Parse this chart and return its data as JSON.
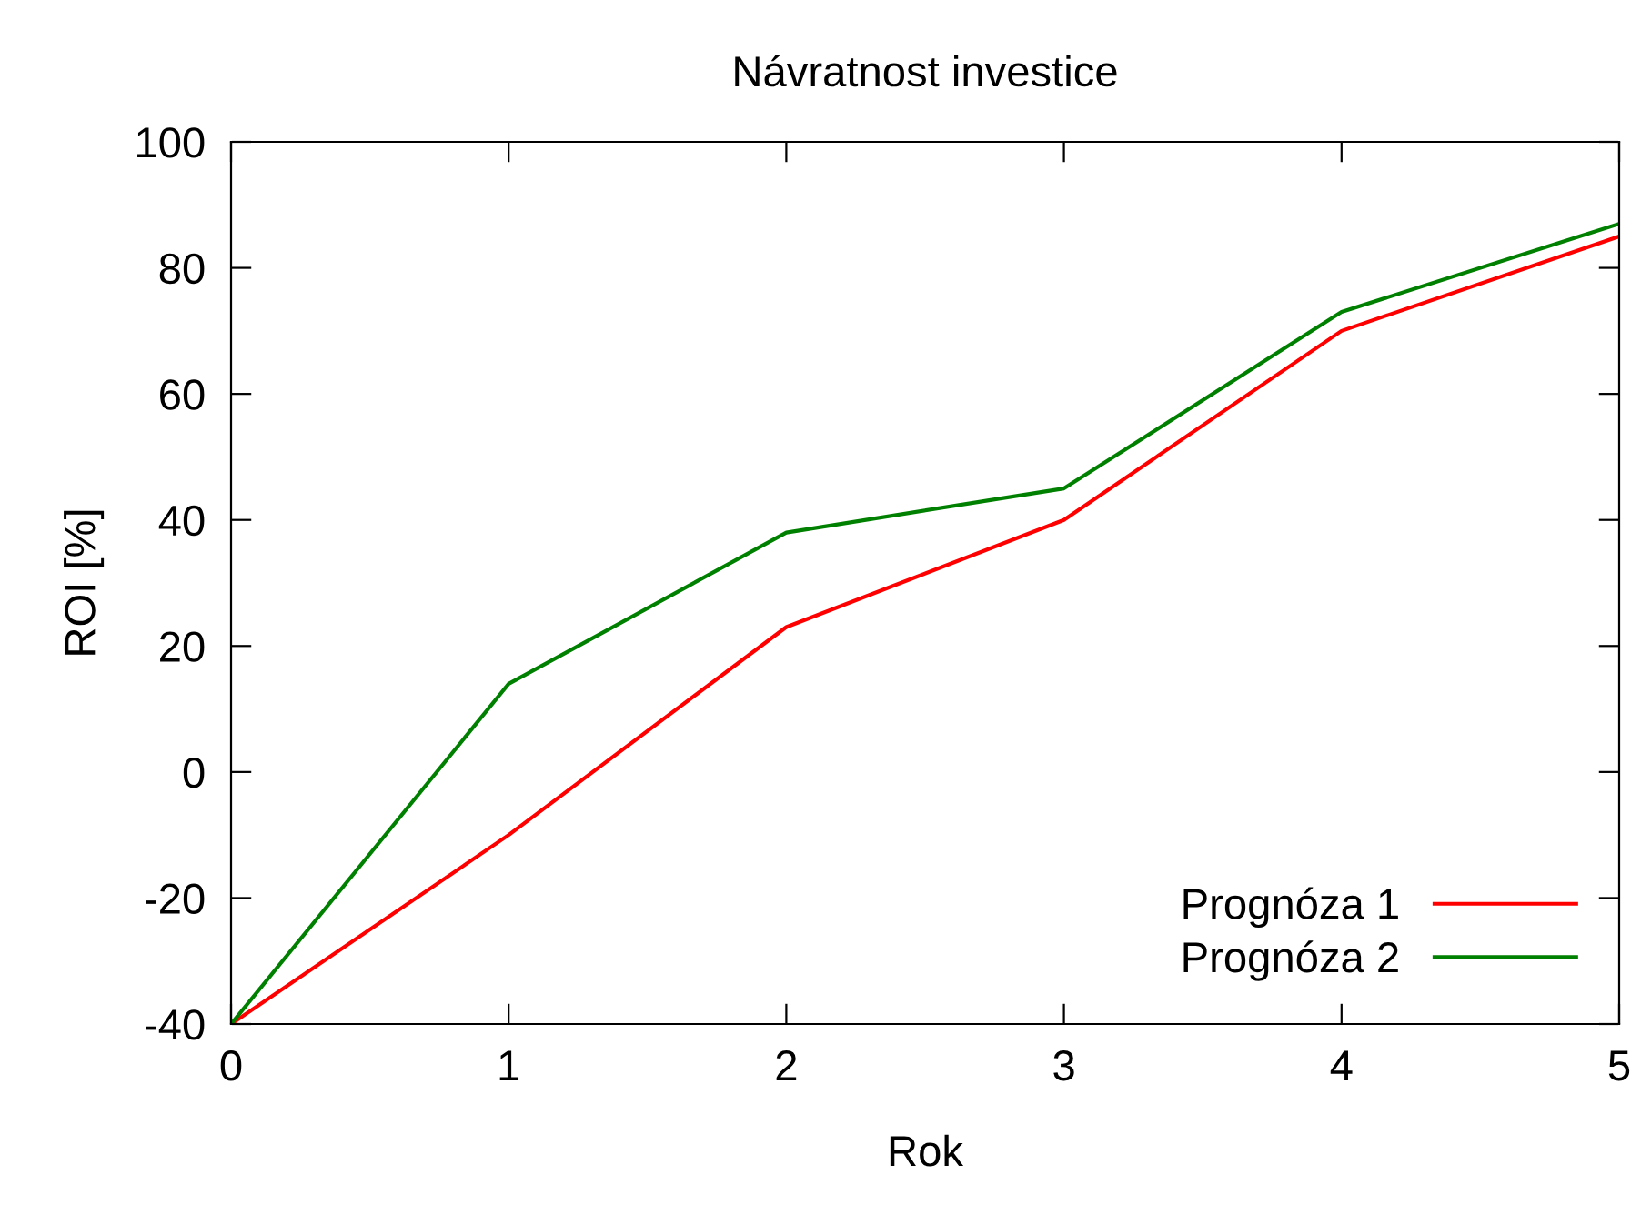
{
  "chart_data": {
    "type": "line",
    "title": "Návratnost investice",
    "xlabel": "Rok",
    "ylabel": "ROI [%]",
    "x": [
      0,
      1,
      2,
      3,
      4,
      5
    ],
    "series": [
      {
        "name": "Prognóza 1",
        "color": "#ff0000",
        "values": [
          -40,
          -10,
          23,
          40,
          70,
          85
        ]
      },
      {
        "name": "Prognóza 2",
        "color": "#008000",
        "values": [
          -40,
          14,
          38,
          45,
          73,
          87
        ]
      }
    ],
    "xlim": [
      0,
      5
    ],
    "xticks": [
      0,
      1,
      2,
      3,
      4,
      5
    ],
    "ylim": [
      -40,
      100
    ],
    "yticks": [
      -40,
      -20,
      0,
      20,
      40,
      60,
      80,
      100
    ],
    "grid": false,
    "legend": "bottom right",
    "marker": "none",
    "line_style": "solid"
  }
}
